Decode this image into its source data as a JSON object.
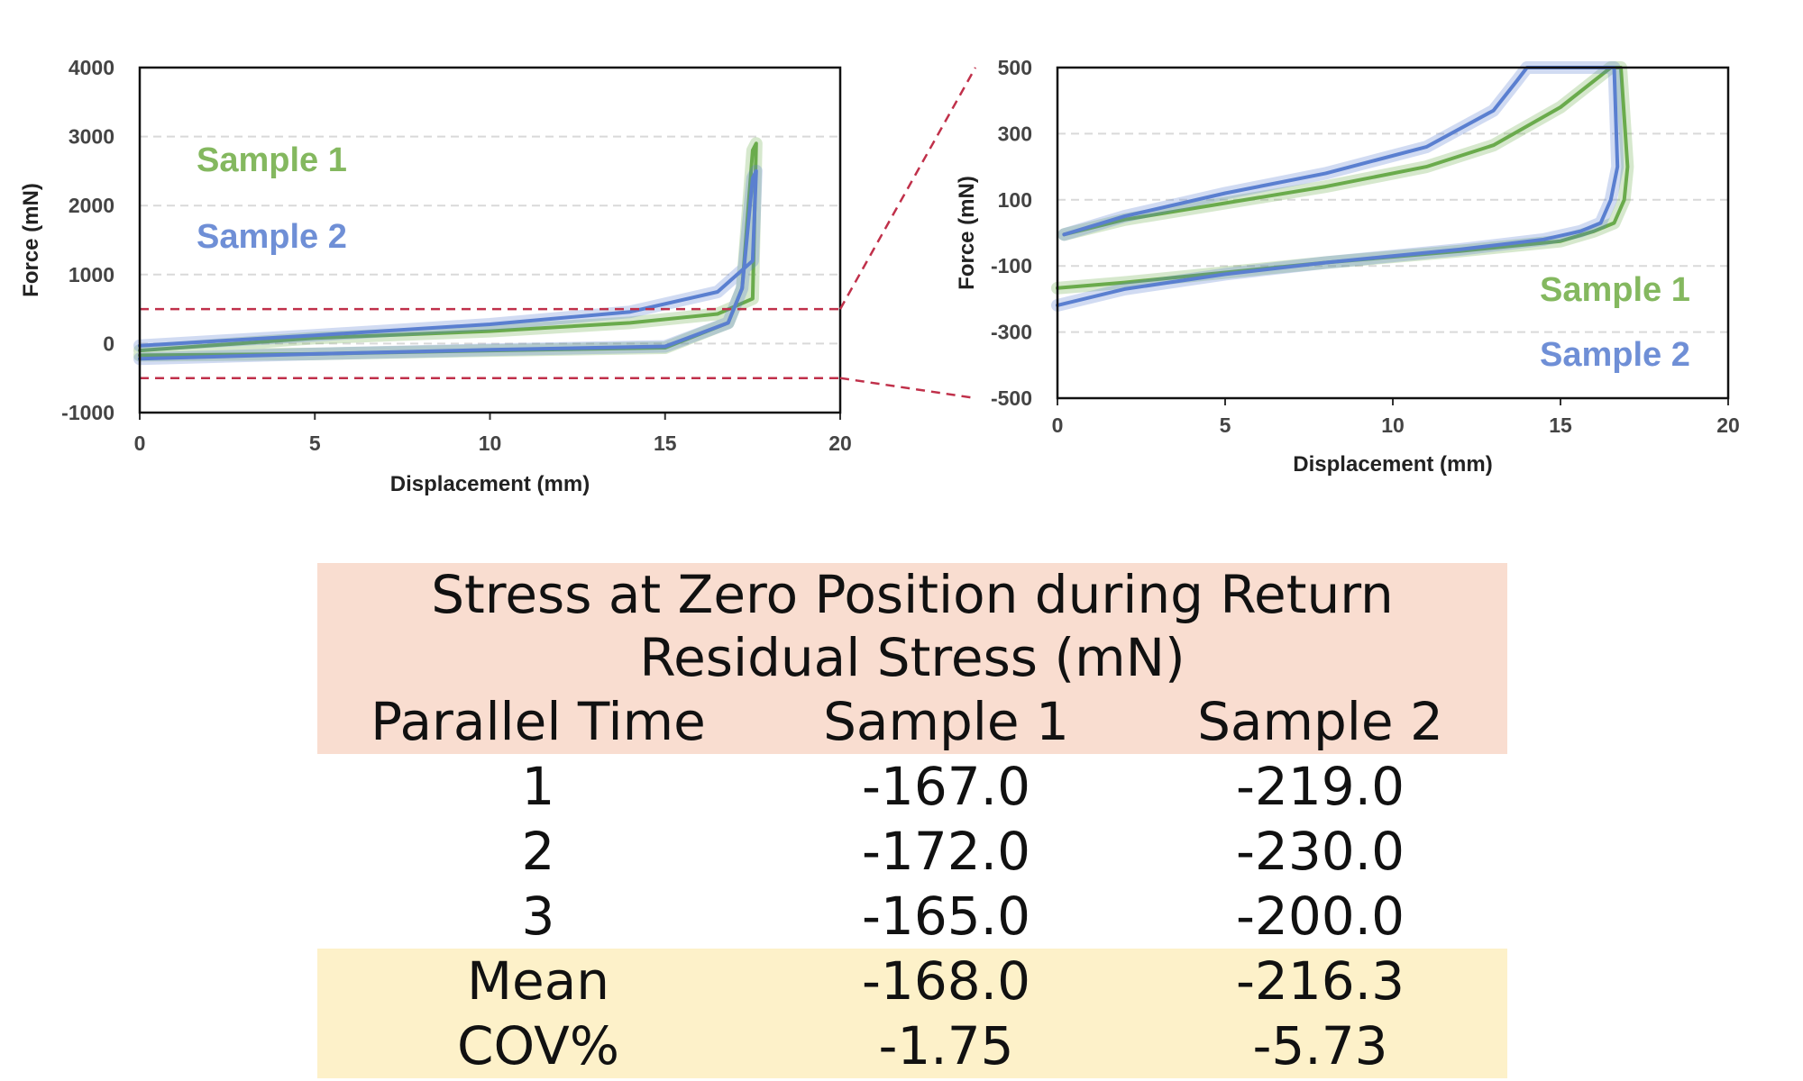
{
  "colors": {
    "sample1": "#6aab4c",
    "sample2": "#5a7fd0",
    "sample1_legend": "#84b85f",
    "sample2_legend": "#6f8fd6",
    "guide": "#c0304a",
    "grid": "#d9d9d9"
  },
  "chart_data": [
    {
      "type": "line",
      "xlabel": "Displacement (mm)",
      "ylabel": "Force (mN)",
      "xlim": [
        0,
        20
      ],
      "ylim": [
        -1000,
        4000
      ],
      "xticks": [
        "0",
        "5",
        "10",
        "15",
        "20"
      ],
      "yticks": [
        "4000",
        "3000",
        "2000",
        "1000",
        "0",
        "-1000"
      ],
      "grid": true,
      "legend": [
        "Sample 1",
        "Sample 2"
      ],
      "zoom_band": [
        -500,
        500
      ],
      "series": [
        {
          "name": "Sample 1",
          "x": [
            0,
            5,
            10,
            14,
            16.5,
            17.5,
            17.6,
            17.5,
            17.2,
            16.8,
            15,
            10,
            5,
            0
          ],
          "y": [
            -100,
            80,
            180,
            300,
            430,
            650,
            2900,
            2800,
            800,
            300,
            -60,
            -100,
            -150,
            -170
          ]
        },
        {
          "name": "Sample 2",
          "x": [
            0,
            5,
            10,
            14,
            16.5,
            17.5,
            17.6,
            17.5,
            17.2,
            16.8,
            15,
            10,
            5,
            0
          ],
          "y": [
            -30,
            120,
            280,
            460,
            750,
            1200,
            2500,
            2400,
            800,
            300,
            -40,
            -90,
            -150,
            -220
          ]
        }
      ]
    },
    {
      "type": "line",
      "xlabel": "Displacement (mm)",
      "ylabel": "Force (mN)",
      "xlim": [
        0,
        20
      ],
      "ylim": [
        -500,
        500
      ],
      "xticks": [
        "0",
        "5",
        "10",
        "15",
        "20"
      ],
      "yticks": [
        "500",
        "300",
        "100",
        "-100",
        "-300",
        "-500"
      ],
      "grid": true,
      "legend": [
        "Sample 1",
        "Sample 2"
      ],
      "series": [
        {
          "name": "Sample 1",
          "x": [
            0.2,
            2,
            5,
            8,
            11,
            13,
            15,
            16.5,
            16.8,
            17,
            16.9,
            16.6,
            16,
            15,
            12,
            8,
            5,
            2,
            0
          ],
          "y": [
            -5,
            40,
            90,
            140,
            200,
            265,
            380,
            500,
            500,
            200,
            100,
            30,
            5,
            -25,
            -55,
            -90,
            -120,
            -150,
            -167
          ]
        },
        {
          "name": "Sample 2",
          "x": [
            0.2,
            2,
            5,
            8,
            11,
            13,
            13.7,
            14,
            16.6,
            16.7,
            16.5,
            16.2,
            15.6,
            14.5,
            12,
            8,
            5,
            2,
            0
          ],
          "y": [
            -5,
            50,
            120,
            180,
            260,
            370,
            460,
            500,
            500,
            200,
            100,
            30,
            5,
            -20,
            -50,
            -90,
            -125,
            -170,
            -219
          ]
        }
      ]
    }
  ],
  "table": {
    "title_line1": "Stress at Zero Position during Return",
    "title_line2": "Residual Stress (mN)",
    "headers": [
      "Parallel Time",
      "Sample 1",
      "Sample 2"
    ],
    "rows": [
      [
        "1",
        "-167.0",
        "-219.0"
      ],
      [
        "2",
        "-172.0",
        "-230.0"
      ],
      [
        "3",
        "-165.0",
        "-200.0"
      ]
    ],
    "summary": [
      [
        "Mean",
        "-168.0",
        "-216.3"
      ],
      [
        "COV%",
        "-1.75",
        "-5.73"
      ]
    ]
  }
}
